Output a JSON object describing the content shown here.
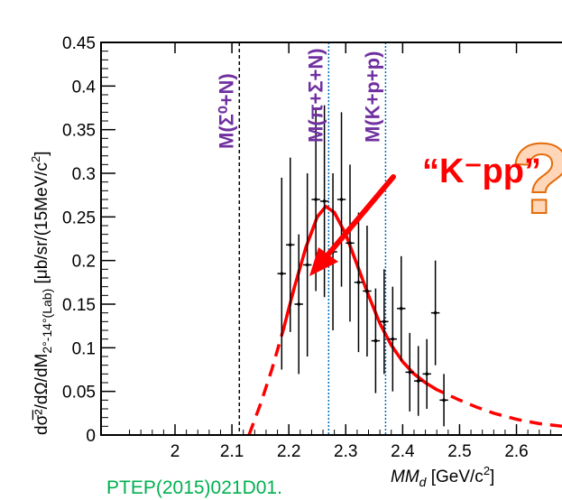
{
  "chart_data": {
    "type": "scatter",
    "xlabel_main": "MM",
    "xlabel_sub": "d",
    "xlabel_unit": " [GeV/c",
    "xlabel_unit_sup": "2",
    "xlabel_unit_end": "]",
    "ylabel": "dσ̅²/dΩ/dM",
    "ylabel_sub": "2°-14°(Lab)",
    "ylabel_unit": " [μb/sr/(15MeV/c",
    "ylabel_unit_sup": "2",
    "ylabel_unit_end": "]",
    "xlim": [
      1.87,
      2.68
    ],
    "ylim": [
      0,
      0.45
    ],
    "x_ticks": [
      "2",
      "2.1",
      "2.2",
      "2.3",
      "2.4",
      "2.5",
      "2.6"
    ],
    "x_tick_values": [
      2.0,
      2.1,
      2.2,
      2.3,
      2.4,
      2.5,
      2.6
    ],
    "y_ticks": [
      "0",
      "0.05",
      "0.1",
      "0.15",
      "0.2",
      "0.25",
      "0.3",
      "0.35",
      "0.4",
      "0.45"
    ],
    "y_tick_values": [
      0,
      0.05,
      0.1,
      0.15,
      0.2,
      0.25,
      0.3,
      0.35,
      0.4,
      0.45
    ],
    "points": [
      {
        "x": 2.1875,
        "y": 0.185,
        "err": 0.11
      },
      {
        "x": 2.2025,
        "y": 0.218,
        "err": 0.1
      },
      {
        "x": 2.2175,
        "y": 0.15,
        "err": 0.08
      },
      {
        "x": 2.2325,
        "y": 0.195,
        "err": 0.105
      },
      {
        "x": 2.2475,
        "y": 0.27,
        "err": 0.105
      },
      {
        "x": 2.2625,
        "y": 0.268,
        "err": 0.11
      },
      {
        "x": 2.2775,
        "y": 0.21,
        "err": 0.09
      },
      {
        "x": 2.2925,
        "y": 0.27,
        "err": 0.1
      },
      {
        "x": 2.3075,
        "y": 0.22,
        "err": 0.09
      },
      {
        "x": 2.3225,
        "y": 0.175,
        "err": 0.08
      },
      {
        "x": 2.3375,
        "y": 0.165,
        "err": 0.075
      },
      {
        "x": 2.3525,
        "y": 0.108,
        "err": 0.06
      },
      {
        "x": 2.3675,
        "y": 0.13,
        "err": 0.06
      },
      {
        "x": 2.3825,
        "y": 0.11,
        "err": 0.06
      },
      {
        "x": 2.3975,
        "y": 0.145,
        "err": 0.06
      },
      {
        "x": 2.4125,
        "y": 0.072,
        "err": 0.045
      },
      {
        "x": 2.4275,
        "y": 0.062,
        "err": 0.04
      },
      {
        "x": 2.4425,
        "y": 0.07,
        "err": 0.04
      },
      {
        "x": 2.4575,
        "y": 0.14,
        "err": 0.06
      },
      {
        "x": 2.4725,
        "y": 0.04,
        "err": 0.03
      }
    ],
    "fit_curve": {
      "color": "#ff0000",
      "solid_range": [
        2.19,
        2.47
      ],
      "points": [
        [
          2.13,
          0.0
        ],
        [
          2.15,
          0.035
        ],
        [
          2.17,
          0.075
        ],
        [
          2.19,
          0.12
        ],
        [
          2.21,
          0.17
        ],
        [
          2.23,
          0.215
        ],
        [
          2.25,
          0.25
        ],
        [
          2.265,
          0.262
        ],
        [
          2.28,
          0.255
        ],
        [
          2.3,
          0.23
        ],
        [
          2.32,
          0.195
        ],
        [
          2.34,
          0.16
        ],
        [
          2.36,
          0.128
        ],
        [
          2.38,
          0.103
        ],
        [
          2.4,
          0.084
        ],
        [
          2.42,
          0.07
        ],
        [
          2.44,
          0.06
        ],
        [
          2.46,
          0.052
        ],
        [
          2.48,
          0.046
        ],
        [
          2.5,
          0.04
        ],
        [
          2.53,
          0.032
        ],
        [
          2.56,
          0.025
        ],
        [
          2.6,
          0.018
        ],
        [
          2.64,
          0.013
        ],
        [
          2.68,
          0.01
        ]
      ]
    },
    "thresholds": [
      {
        "x": 2.113,
        "label": "M(Σ⁰+N)",
        "color": "#000000"
      },
      {
        "x": 2.27,
        "label": "M(π+Σ+N)",
        "color": "#0070c0"
      },
      {
        "x": 2.37,
        "label": "M(K+p+p)",
        "color": "#0070c0"
      }
    ],
    "annotations": {
      "kpp": "“K⁻pp”",
      "question_mark": "?",
      "reference": "PTEP(2015)021D01."
    }
  }
}
